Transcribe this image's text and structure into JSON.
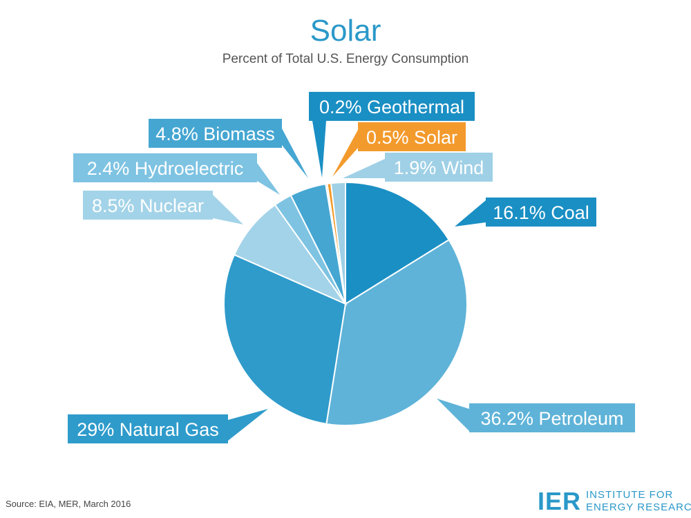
{
  "header": {
    "title": "Solar",
    "subtitle": "Percent of Total U.S. Energy Consumption"
  },
  "footer": {
    "source": "Source: EIA, MER, March 2016",
    "logo_mark": "IER",
    "logo_line1": "INSTITUTE FOR",
    "logo_line2": "ENERGY RESEARCH"
  },
  "chart_data": {
    "type": "pie",
    "title": "Solar",
    "subtitle": "Percent of Total U.S. Energy Consumption",
    "slices": [
      {
        "name": "Coal",
        "value": 16.1,
        "label": "16.1% Coal",
        "color": "#1a8fc4",
        "label_color": "#1a8fc4"
      },
      {
        "name": "Petroleum",
        "value": 36.2,
        "label": "36.2% Petroleum",
        "color": "#5fb3d8",
        "label_color": "#5fb3d8"
      },
      {
        "name": "Natural Gas",
        "value": 29,
        "label": "29% Natural Gas",
        "color": "#2e9bcb",
        "label_color": "#2e9bcb"
      },
      {
        "name": "Nuclear",
        "value": 8.5,
        "label": "8.5% Nuclear",
        "color": "#a3d3e8",
        "label_color": "#a3d3e8"
      },
      {
        "name": "Hydroelectric",
        "value": 2.4,
        "label": "2.4% Hydroelectric",
        "color": "#7ec3e2",
        "label_color": "#7ec3e2"
      },
      {
        "name": "Biomass",
        "value": 4.8,
        "label": "4.8% Biomass",
        "color": "#45a6d2",
        "label_color": "#45a6d2"
      },
      {
        "name": "Geothermal",
        "value": 0.2,
        "label": "0.2% Geothermal",
        "color": "#1a8fc4",
        "label_color": "#1a8fc4"
      },
      {
        "name": "Solar",
        "value": 0.5,
        "label": "0.5% Solar",
        "color": "#f39a2c",
        "label_color": "#f39a2c"
      },
      {
        "name": "Wind",
        "value": 1.9,
        "label": "1.9% Wind",
        "color": "#9fd0e6",
        "label_color": "#9fd0e6"
      }
    ]
  }
}
